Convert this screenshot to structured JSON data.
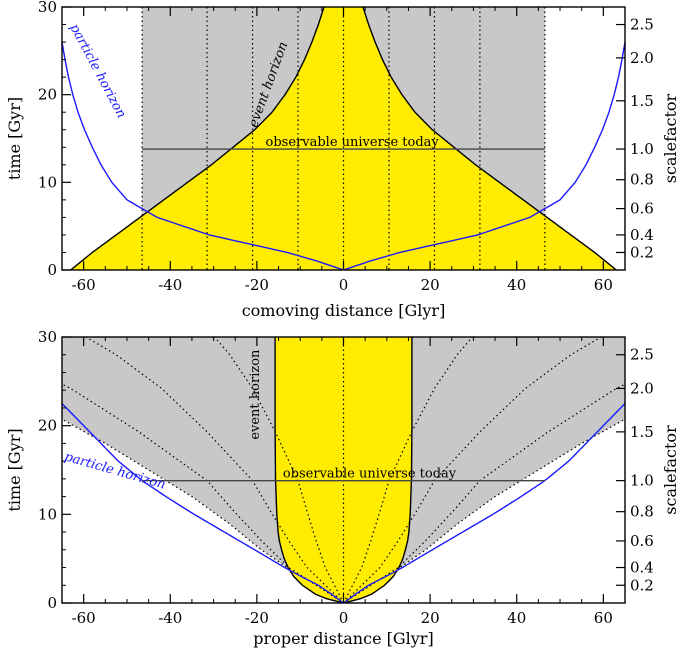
{
  "colors": {
    "observable_fill": "#c8c8c8",
    "light_cone_fill": "#ffec00",
    "particle_horizon": "#1a1aff",
    "lines": "#000000"
  },
  "chart_data": [
    {
      "type": "line",
      "panel": "top",
      "xlabel": "comoving distance [Glyr]",
      "ylabel": "time [Gyr]",
      "y2label": "scalefactor",
      "xlim": [
        -65,
        65
      ],
      "ylim": [
        0,
        30
      ],
      "xticks": [
        -60,
        -40,
        -20,
        0,
        20,
        40,
        60
      ],
      "yticks": [
        0,
        10,
        20,
        30
      ],
      "y2ticks": [
        {
          "label": "0.2",
          "t": 2.0
        },
        {
          "label": "0.4",
          "t": 4.0
        },
        {
          "label": "0.6",
          "t": 7.0
        },
        {
          "label": "0.8",
          "t": 10.3
        },
        {
          "label": "1.0",
          "t": 13.8
        },
        {
          "label": "1.5",
          "t": 19.3
        },
        {
          "label": "2.0",
          "t": 24.2
        },
        {
          "label": "2.5",
          "t": 28.0
        }
      ],
      "observable_universe_x": [
        -46.5,
        46.5
      ],
      "today_t": 13.8,
      "comoving_worldlines_x": [
        -31.5,
        -21,
        -10.5,
        0,
        10.5,
        21,
        31.5
      ],
      "event_horizon": {
        "t": [
          0,
          2,
          4,
          6,
          8,
          10,
          12,
          14,
          16,
          18,
          20,
          22,
          24,
          26,
          28,
          30
        ],
        "x": [
          63,
          58,
          52.5,
          47,
          41.5,
          36,
          30.5,
          25.5,
          20.5,
          16.5,
          13.5,
          11,
          9,
          7.3,
          5.8,
          4.5
        ]
      },
      "particle_horizon": {
        "t": [
          0,
          1,
          2,
          4,
          6,
          8,
          10,
          12,
          14,
          16,
          18,
          20,
          22,
          24,
          26,
          28,
          30
        ],
        "x": [
          0,
          6,
          13,
          31,
          43,
          50,
          53.5,
          56,
          58,
          59.8,
          61.3,
          62.5,
          63.5,
          64.3,
          65,
          65.6,
          66
        ]
      },
      "labels": {
        "observable_universe": "observable universe today",
        "event_horizon": "event  horizon",
        "particle_horizon": "particle  horizon"
      }
    },
    {
      "type": "line",
      "panel": "bottom",
      "xlabel": "proper distance [Glyr]",
      "ylabel": "time [Gyr]",
      "y2label": "scalefactor",
      "xlim": [
        -65,
        65
      ],
      "ylim": [
        0,
        30
      ],
      "xticks": [
        -60,
        -40,
        -20,
        0,
        20,
        40,
        60
      ],
      "yticks": [
        0,
        10,
        20,
        30
      ],
      "y2ticks": [
        {
          "label": "0.2",
          "t": 2.0
        },
        {
          "label": "0.4",
          "t": 4.0
        },
        {
          "label": "0.6",
          "t": 7.0
        },
        {
          "label": "0.8",
          "t": 10.3
        },
        {
          "label": "1.0",
          "t": 13.8
        },
        {
          "label": "1.5",
          "t": 19.3
        },
        {
          "label": "2.0",
          "t": 24.2
        },
        {
          "label": "2.5",
          "t": 28.0
        }
      ],
      "today_t": 13.8,
      "today_x": [
        -46.5,
        46.5
      ],
      "observable_boundary": {
        "t": [
          0,
          3,
          6,
          9,
          12,
          15,
          18,
          21,
          24,
          27,
          30
        ],
        "x": [
          0,
          10,
          19,
          26.5,
          35,
          45,
          55,
          66,
          78,
          90,
          103
        ]
      },
      "event_horizon": {
        "t": [
          0,
          0.5,
          1,
          2,
          3,
          4,
          5,
          6,
          7,
          8,
          10,
          14,
          20,
          30
        ],
        "x": [
          0,
          4,
          6.5,
          9.5,
          11.5,
          12.8,
          13.7,
          14.3,
          14.8,
          15.1,
          15.4,
          15.7,
          15.8,
          15.8
        ]
      },
      "particle_horizon": {
        "t": [
          0,
          1,
          2,
          3,
          4,
          6,
          8,
          10,
          12,
          13.8,
          16,
          20,
          25,
          30
        ],
        "x": [
          0,
          2.8,
          5.8,
          9.8,
          13.6,
          20.5,
          27.5,
          34.5,
          41,
          46.5,
          52,
          60,
          70,
          80
        ]
      },
      "comoving_worldlines_comoving_x": [
        -31.5,
        -21,
        -10.5,
        0,
        10.5,
        21,
        31.5
      ],
      "labels": {
        "observable_universe": "observable universe today",
        "event_horizon": "event  horizon",
        "particle_horizon": "particle  horizon"
      }
    }
  ]
}
